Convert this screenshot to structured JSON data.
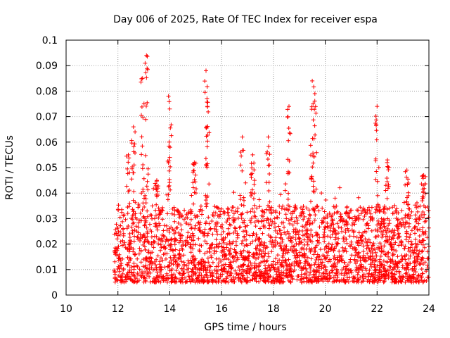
{
  "chart_data": {
    "type": "scatter",
    "title": "Day 006 of 2025, Rate Of TEC Index for receiver espa",
    "xlabel": "GPS time / hours",
    "ylabel": "ROTI / TECUs",
    "xlim": [
      10,
      24
    ],
    "ylim": [
      0,
      0.1
    ],
    "x_ticks": [
      10,
      12,
      14,
      16,
      18,
      20,
      22,
      24
    ],
    "x_tick_labels": [
      "10",
      "12",
      "14",
      "16",
      "18",
      "20",
      "22",
      "24"
    ],
    "y_ticks": [
      0,
      0.01,
      0.02,
      0.03,
      0.04,
      0.05,
      0.06,
      0.07,
      0.08,
      0.09,
      0.1
    ],
    "y_tick_labels": [
      "0",
      "0.01",
      "0.02",
      "0.03",
      "0.04",
      "0.05",
      "0.06",
      "0.07",
      "0.08",
      "0.09",
      "0.1"
    ],
    "grid": true,
    "marker": "plus",
    "color": "#ff0000",
    "series": [
      {
        "name": "ROTI",
        "data_start_hour": 11.85,
        "data_end_hour": 24.0,
        "typical_range": [
          0.005,
          0.035
        ],
        "peaks": [
          {
            "x": 12.4,
            "y": 0.055
          },
          {
            "x": 12.6,
            "y": 0.066
          },
          {
            "x": 12.95,
            "y": 0.085
          },
          {
            "x": 13.1,
            "y": 0.094
          },
          {
            "x": 13.5,
            "y": 0.045
          },
          {
            "x": 13.95,
            "y": 0.078
          },
          {
            "x": 14.0,
            "y": 0.073
          },
          {
            "x": 14.95,
            "y": 0.052
          },
          {
            "x": 15.4,
            "y": 0.088
          },
          {
            "x": 15.45,
            "y": 0.074
          },
          {
            "x": 16.8,
            "y": 0.062
          },
          {
            "x": 17.2,
            "y": 0.055
          },
          {
            "x": 17.8,
            "y": 0.062
          },
          {
            "x": 18.6,
            "y": 0.074
          },
          {
            "x": 19.5,
            "y": 0.084
          },
          {
            "x": 19.6,
            "y": 0.079
          },
          {
            "x": 22.0,
            "y": 0.074
          },
          {
            "x": 22.4,
            "y": 0.053
          },
          {
            "x": 23.15,
            "y": 0.049
          },
          {
            "x": 23.8,
            "y": 0.047
          }
        ]
      }
    ]
  }
}
